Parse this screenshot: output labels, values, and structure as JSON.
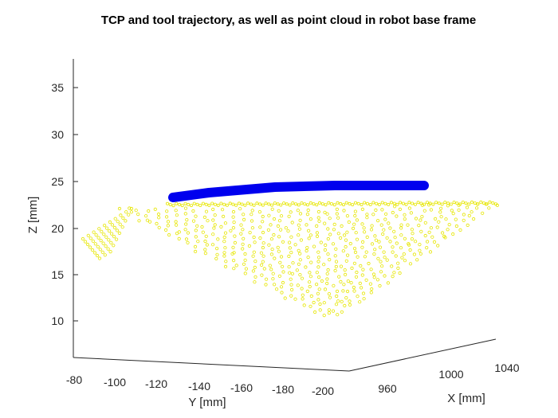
{
  "chart_data": {
    "type": "scatter",
    "title": "TCP and tool trajectory, as well as point cloud in robot base frame",
    "xlabel": "X [mm]",
    "ylabel": "Y [mm]",
    "zlabel": "Z [mm]",
    "x_ticks": [
      "960",
      "1000",
      "1040"
    ],
    "y_ticks": [
      "-80",
      "-100",
      "-120",
      "-140",
      "-160",
      "-180",
      "-200"
    ],
    "z_ticks": [
      "10",
      "15",
      "20",
      "25",
      "30",
      "35"
    ],
    "xlim": [
      930,
      1060
    ],
    "ylim": [
      -200,
      -80
    ],
    "zlim": [
      8,
      38
    ],
    "grid": false,
    "view": "3d-perspective",
    "series": [
      {
        "kind": "trajectory",
        "color": "#0000ee",
        "points": [
          [
            995,
            -123,
            23.2
          ],
          [
            1000,
            -145,
            24.0
          ],
          [
            1010,
            -165,
            24.4
          ],
          [
            1030,
            -185,
            24.5
          ]
        ]
      },
      {
        "kind": "point-cloud",
        "color": "#e6e600",
        "description_rows": 22,
        "z_surface_range": [
          10,
          22.5
        ]
      }
    ]
  }
}
